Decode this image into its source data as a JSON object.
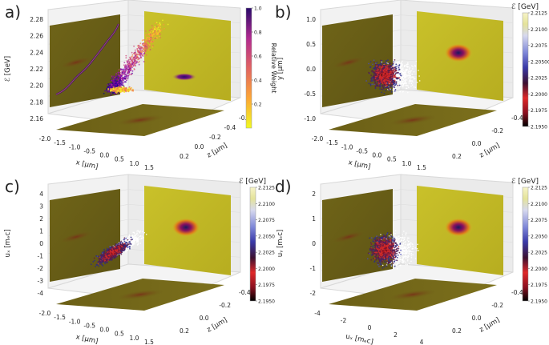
{
  "chart_data": [
    {
      "type": "scatter",
      "panel": "a)",
      "zlabel": "ℰ [GeV]",
      "xlabel": "x [μm]",
      "ylabel": "z [μm]",
      "z_ticks": [
        "2.16",
        "2.18",
        "2.20",
        "2.22",
        "2.24",
        "2.26",
        "2.28"
      ],
      "x_ticks": [
        "-2.0",
        "-1.5",
        "-1.0",
        "-0.5",
        "0.0",
        "0.5",
        "1.0",
        "1.5"
      ],
      "y_ticks": [
        "0.2",
        "0.0",
        "-0.2",
        "-0.4",
        "-0.6"
      ],
      "colorbar": {
        "label": "Relative Weight",
        "ticks": [
          "0.2",
          "0.4",
          "0.6",
          "0.8",
          "1.0"
        ],
        "range": [
          0,
          1
        ],
        "colormap": "plasma-reversed"
      },
      "projection_panel_color": "#7a6a1c"
    },
    {
      "type": "scatter",
      "panel": "b)",
      "zlabel": "y [μm]",
      "xlabel": "x [μm]",
      "ylabel": "z [μm]",
      "z_ticks": [
        "-1.0",
        "-0.5",
        "0.0",
        "0.5",
        "1.0"
      ],
      "x_ticks": [
        "-2.0",
        "-1.5",
        "-1.0",
        "-0.5",
        "0.0",
        "0.5",
        "1.0",
        "1.5"
      ],
      "y_ticks": [
        "0.2",
        "0.0",
        "-0.2",
        "-0.4"
      ],
      "colorbar": {
        "label": "ℰ [GeV]",
        "ticks": [
          "2.1950",
          "2.1975",
          "2.2000",
          "2.2025",
          "2.20500",
          "2.2075",
          "2.2100",
          "2.2125"
        ],
        "range": [
          2.195,
          2.2125
        ],
        "colormap": "energy"
      }
    },
    {
      "type": "scatter",
      "panel": "c)",
      "zlabel": "uₓ [mₑc]",
      "xlabel": "x [μm]",
      "ylabel": "z [μm]",
      "z_ticks": [
        "-4",
        "-3",
        "-2",
        "-1",
        "0",
        "1",
        "2",
        "3",
        "4"
      ],
      "x_ticks": [
        "-2.0",
        "-1.5",
        "-1.0",
        "-0.5",
        "0.0",
        "0.5",
        "1.0",
        "1.5"
      ],
      "y_ticks": [
        "0.2",
        "0.0",
        "-0.2",
        "-0.4"
      ],
      "colorbar": {
        "label": "ℰ [GeV]",
        "ticks": [
          "2.1950",
          "2.1975",
          "2.2000",
          "2.2025",
          "2.2050",
          "2.2075",
          "2.2100",
          "2.2125"
        ],
        "range": [
          2.195,
          2.2125
        ],
        "colormap": "energy"
      }
    },
    {
      "type": "scatter",
      "panel": "d)",
      "zlabel": "uᵧ [mₑc]",
      "xlabel": "uₓ [mₑc]",
      "ylabel": "z [μm]",
      "z_ticks": [
        "-2",
        "-1",
        "0",
        "1",
        "2"
      ],
      "x_ticks": [
        "-4",
        "-2",
        "0",
        "2",
        "4"
      ],
      "y_ticks": [
        "0.2",
        "0.0",
        "-0.2",
        "-0.4"
      ],
      "colorbar": {
        "label": "ℰ [GeV]",
        "ticks": [
          "2.1950",
          "2.1975",
          "2.2000",
          "2.2025",
          "2.2050",
          "2.2075",
          "2.2100",
          "2.2125"
        ],
        "range": [
          2.195,
          2.2125
        ],
        "colormap": "energy"
      }
    }
  ]
}
